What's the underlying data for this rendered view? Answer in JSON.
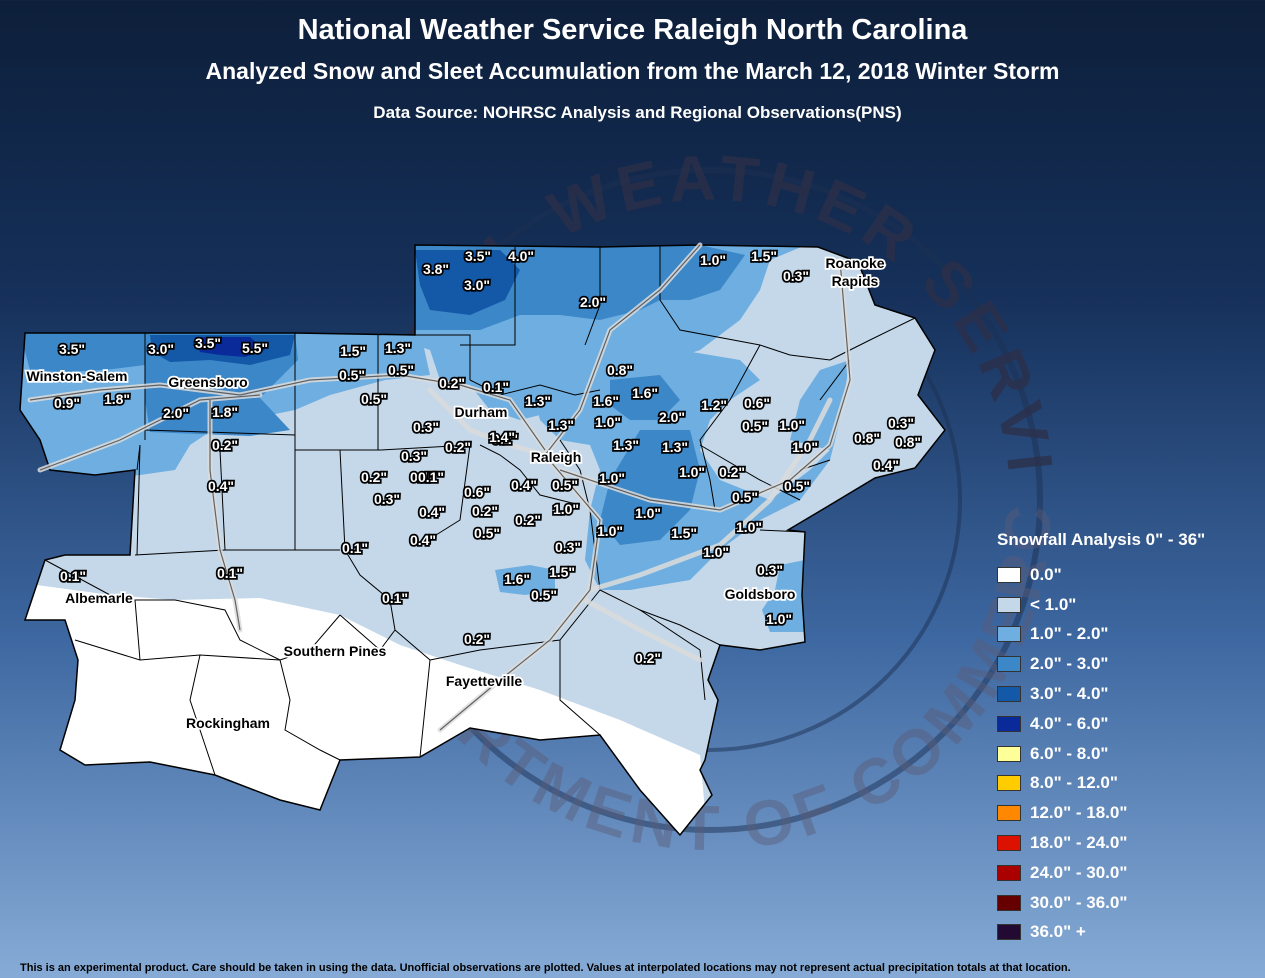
{
  "header": {
    "title": "National Weather Service Raleigh North Carolina",
    "subtitle": "Analyzed Snow and Sleet Accumulation from the March 12, 2018 Winter Storm",
    "source": "Data Source: NOHRSC Analysis and Regional Observations(PNS)"
  },
  "watermark": {
    "top_text": "NATIONAL WEATHER SERVICE",
    "bottom_text": "DEPARTMENT OF COMMERCE"
  },
  "legend": {
    "title": "Snowfall Analysis 0\" - 36\"",
    "items": [
      {
        "label": "0.0\"",
        "color": "#ffffff"
      },
      {
        "label": "< 1.0\"",
        "color": "#c4d8ea"
      },
      {
        "label": "1.0\" - 2.0\"",
        "color": "#6eaee0"
      },
      {
        "label": "2.0\" - 3.0\"",
        "color": "#3c87c8"
      },
      {
        "label": "3.0\" - 4.0\"",
        "color": "#1458a8"
      },
      {
        "label": "4.0\" - 6.0\"",
        "color": "#0a2a9a"
      },
      {
        "label": "6.0\" - 8.0\"",
        "color": "#ffff99"
      },
      {
        "label": "8.0\" - 12.0\"",
        "color": "#ffcc00"
      },
      {
        "label": "12.0\" - 18.0\"",
        "color": "#ff8800"
      },
      {
        "label": "18.0\" - 24.0\"",
        "color": "#dd1100"
      },
      {
        "label": "24.0\" - 30.0\"",
        "color": "#aa0000"
      },
      {
        "label": "30.0\" - 36.0\"",
        "color": "#660000"
      },
      {
        "label": "36.0\" +",
        "color": "#220a33"
      }
    ]
  },
  "cities": [
    {
      "name": "Winston-Salem"
    },
    {
      "name": "Greensboro"
    },
    {
      "name": "Durham"
    },
    {
      "name": "Raleigh"
    },
    {
      "name": "Roanoke"
    },
    {
      "name": "Rapids"
    },
    {
      "name": "Goldsboro"
    },
    {
      "name": "Albemarle"
    },
    {
      "name": "Southern Pines"
    },
    {
      "name": "Fayetteville"
    },
    {
      "name": "Rockingham"
    }
  ],
  "observations": [
    "3.5\"",
    "4.0\"",
    "3.8\"",
    "3.0\"",
    "1.0\"",
    "1.5\"",
    "0.3\"",
    "2.0\"",
    "3.5\"",
    "3.0\"",
    "3.5\"",
    "5.5\"",
    "1.5\"",
    "1.3\"",
    "0.5\"",
    "0.5\"",
    "0.2\"",
    "0.1\"",
    "0.8\"",
    "1.6\"",
    "0.9\"",
    "1.8\"",
    "2.0\"",
    "1.8\"",
    "0.5\"",
    "1.3\"",
    "1.6\"",
    "1.2\"",
    "0.6\"",
    "0.3\"",
    "1.3\"",
    "1.0\"",
    "2.0\"",
    "0.5\"",
    "1.0\"",
    "0.3\"",
    "0.2\"",
    "0.2\"",
    "1.4\"",
    "1.3\"",
    "1.3\"",
    "0.8\"",
    "0.8\"",
    "0.3\"",
    "0.1\"",
    "1.0\"",
    "0.4\"",
    "0.5\"",
    "1.0\"",
    "1.0\"",
    "0.2\"",
    "0.4\"",
    "0.2\"",
    "0.1\"",
    "0.3\"",
    "0.6\"",
    "0.5\"",
    "0.5\"",
    "0.4\"",
    "0.2\"",
    "0.2\"",
    "1.0\"",
    "1.0\"",
    "1.0\"",
    "0.2\"",
    "0.4\"",
    "0.5\"",
    "1.5\"",
    "1.0\"",
    "0.1\"",
    "0.4\"",
    "0.3\"",
    "1.0\"",
    "0.1\"",
    "0.1\"",
    "1.6\"",
    "1.5\"",
    "0.3\"",
    "0.5\"",
    "0.1\"",
    "1.0\"",
    "0.2\"",
    "0.2\""
  ],
  "footer": "This is an experimental product. Care should be taken in using the data. Unofficial observations are plotted. Values at interpolated locations may not represent actual precipitation totals at that location."
}
